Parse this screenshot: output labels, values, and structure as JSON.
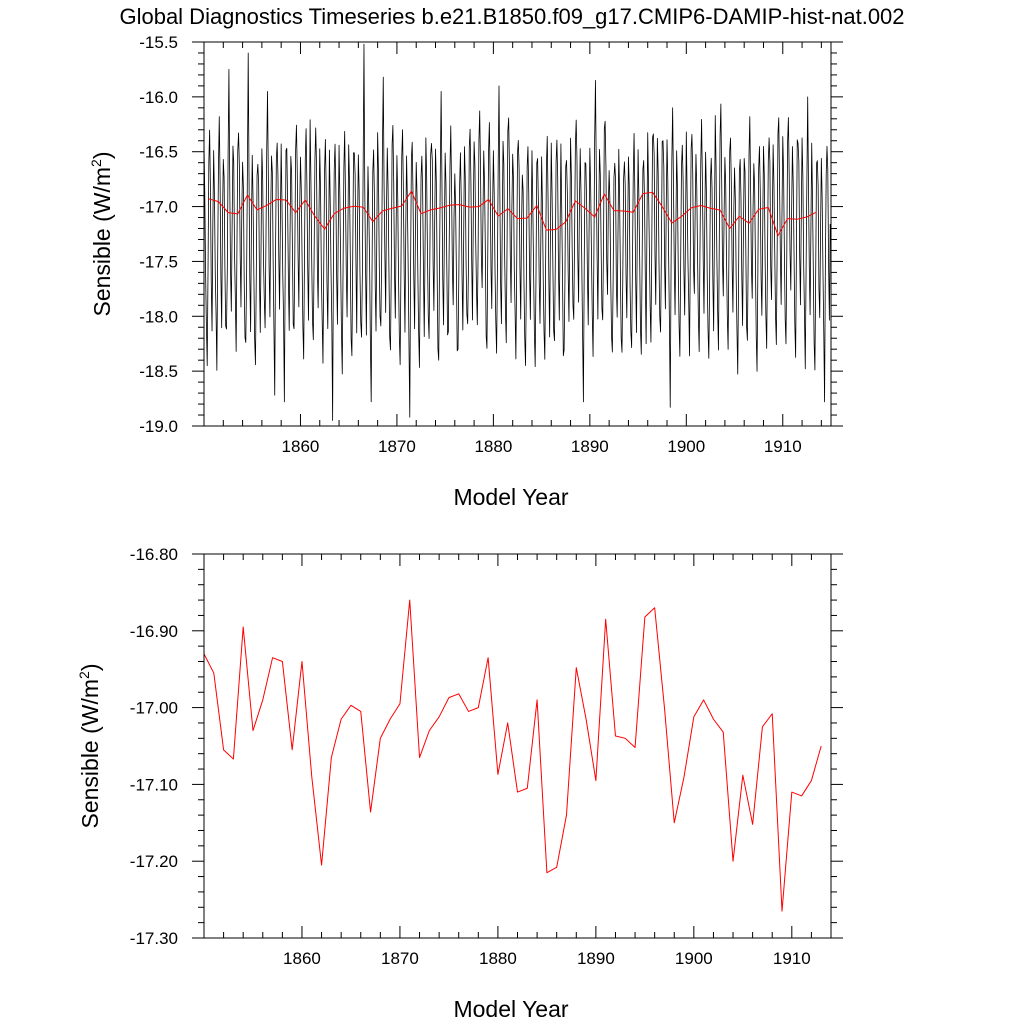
{
  "figure": {
    "title": "Global Diagnostics Timeseries b.e21.B1850.f09_g17.CMIP6-DAMIP-hist-nat.002"
  },
  "colors": {
    "monthly_series": "#000000",
    "annual_series": "#ff0000",
    "axes": "#000000"
  },
  "chart_data": [
    {
      "type": "line",
      "panel": "top",
      "xlabel": "Model Year",
      "ylabel_text": "Sensible (W/m",
      "ylabel_sup": "2",
      "ylabel_close": ")",
      "xlim": [
        1850,
        1915
      ],
      "ylim": [
        -19.0,
        -15.5
      ],
      "xticks": [
        1860,
        1870,
        1880,
        1890,
        1900,
        1910
      ],
      "xtick_labels": [
        "1860",
        "1870",
        "1880",
        "1890",
        "1900",
        "1910"
      ],
      "yticks": [
        -15.5,
        -16.0,
        -16.5,
        -17.0,
        -17.5,
        -18.0,
        -18.5,
        -19.0
      ],
      "ytick_labels": [
        "-15.5",
        "-16.0",
        "-16.5",
        "-17.0",
        "-17.5",
        "-18.0",
        "-18.5",
        "-19.0"
      ],
      "grid": false,
      "series": [
        {
          "role": "monthly",
          "color": "#000000",
          "start_year": 1850,
          "months_per_year": 12,
          "monthly_cycle": [
            -16.45,
            -16.8,
            -17.5,
            -18.05,
            -18.3,
            -17.5,
            -16.55,
            -16.35,
            -16.75,
            -17.55,
            -18.0,
            -17.15
          ],
          "cycle_amplitude": 1.0,
          "peaks": [
            {
              "year": 1851,
              "value": -16.18
            },
            {
              "year": 1852,
              "value": -15.75
            },
            {
              "year": 1854,
              "value": -15.6
            },
            {
              "year": 1856,
              "value": -15.95
            },
            {
              "year": 1866,
              "value": -15.52
            },
            {
              "year": 1868,
              "value": -15.82
            },
            {
              "year": 1874,
              "value": -15.95
            },
            {
              "year": 1880,
              "value": -15.9
            },
            {
              "year": 1890,
              "value": -15.85
            },
            {
              "year": 1898,
              "value": -16.1
            },
            {
              "year": 1912,
              "value": -16.0
            }
          ],
          "troughs": [
            {
              "year": 1857,
              "value": -18.72
            },
            {
              "year": 1858,
              "value": -18.78
            },
            {
              "year": 1863,
              "value": -18.95
            },
            {
              "year": 1867,
              "value": -18.78
            },
            {
              "year": 1871,
              "value": -18.92
            },
            {
              "year": 1889,
              "value": -18.78
            },
            {
              "year": 1898,
              "value": -18.83
            },
            {
              "year": 1914,
              "value": -18.78
            }
          ]
        },
        {
          "role": "annual",
          "color": "#ff0000",
          "x": [
            1850.5,
            1851.5,
            1852.5,
            1853.5,
            1854.5,
            1855.5,
            1856.5,
            1857.5,
            1858.5,
            1859.5,
            1860.5,
            1861.5,
            1862.5,
            1863.5,
            1864.5,
            1865.5,
            1866.5,
            1867.5,
            1868.5,
            1869.5,
            1870.5,
            1871.5,
            1872.5,
            1873.5,
            1874.5,
            1875.5,
            1876.5,
            1877.5,
            1878.5,
            1879.5,
            1880.5,
            1881.5,
            1882.5,
            1883.5,
            1884.5,
            1885.5,
            1886.5,
            1887.5,
            1888.5,
            1889.5,
            1890.5,
            1891.5,
            1892.5,
            1893.5,
            1894.5,
            1895.5,
            1896.5,
            1897.5,
            1898.5,
            1899.5,
            1900.5,
            1901.5,
            1902.5,
            1903.5,
            1904.5,
            1905.5,
            1906.5,
            1907.5,
            1908.5,
            1909.5,
            1910.5,
            1911.5,
            1912.5,
            1913.5
          ],
          "values": [
            -16.93,
            -16.955,
            -17.055,
            -17.067,
            -16.895,
            -17.03,
            -16.99,
            -16.935,
            -16.94,
            -17.055,
            -16.94,
            -17.09,
            -17.205,
            -17.065,
            -17.015,
            -16.997,
            -17.005,
            -17.136,
            -17.04,
            -17.015,
            -16.995,
            -16.86,
            -17.065,
            -17.03,
            -17.012,
            -16.987,
            -16.982,
            -17.005,
            -17.0,
            -16.935,
            -17.087,
            -17.02,
            -17.11,
            -17.105,
            -16.99,
            -17.215,
            -17.208,
            -17.14,
            -16.948,
            -17.015,
            -17.095,
            -16.885,
            -17.037,
            -17.04,
            -17.052,
            -16.882,
            -16.87,
            -17.0,
            -17.15,
            -17.09,
            -17.012,
            -16.99,
            -17.015,
            -17.032,
            -17.2,
            -17.088,
            -17.152,
            -17.025,
            -17.008,
            -17.265,
            -17.11,
            -17.115,
            -17.095,
            -17.05
          ]
        }
      ]
    },
    {
      "type": "line",
      "panel": "bottom",
      "xlabel": "Model Year",
      "ylabel_text": "Sensible (W/m",
      "ylabel_sup": "2",
      "ylabel_close": ")",
      "xlim": [
        1850,
        1914
      ],
      "ylim": [
        -17.3,
        -16.8
      ],
      "xticks": [
        1860,
        1870,
        1880,
        1890,
        1900,
        1910
      ],
      "xtick_labels": [
        "1860",
        "1870",
        "1880",
        "1890",
        "1900",
        "1910"
      ],
      "yticks": [
        -16.8,
        -16.9,
        -17.0,
        -17.1,
        -17.2,
        -17.3
      ],
      "ytick_labels": [
        "-16.80",
        "-16.90",
        "-17.00",
        "-17.10",
        "-17.20",
        "-17.30"
      ],
      "grid": false,
      "series": [
        {
          "role": "annual",
          "color": "#ff0000",
          "x": [
            1850.0,
            1851.0,
            1852.0,
            1853.0,
            1854.0,
            1855.0,
            1856.0,
            1857.0,
            1858.0,
            1859.0,
            1860.0,
            1861.0,
            1862.0,
            1863.0,
            1864.0,
            1865.0,
            1866.0,
            1867.0,
            1868.0,
            1869.0,
            1870.0,
            1871.0,
            1872.0,
            1873.0,
            1874.0,
            1875.0,
            1876.0,
            1877.0,
            1878.0,
            1879.0,
            1880.0,
            1881.0,
            1882.0,
            1883.0,
            1884.0,
            1885.0,
            1886.0,
            1887.0,
            1888.0,
            1889.0,
            1890.0,
            1891.0,
            1892.0,
            1893.0,
            1894.0,
            1895.0,
            1896.0,
            1897.0,
            1898.0,
            1899.0,
            1900.0,
            1901.0,
            1902.0,
            1903.0,
            1904.0,
            1905.0,
            1906.0,
            1907.0,
            1908.0,
            1909.0,
            1910.0,
            1911.0,
            1912.0,
            1913.0
          ],
          "values": [
            -16.93,
            -16.955,
            -17.055,
            -17.067,
            -16.895,
            -17.03,
            -16.99,
            -16.935,
            -16.94,
            -17.055,
            -16.94,
            -17.09,
            -17.205,
            -17.065,
            -17.015,
            -16.997,
            -17.005,
            -17.136,
            -17.04,
            -17.015,
            -16.995,
            -16.86,
            -17.065,
            -17.03,
            -17.012,
            -16.987,
            -16.982,
            -17.005,
            -17.0,
            -16.935,
            -17.087,
            -17.02,
            -17.11,
            -17.105,
            -16.99,
            -17.215,
            -17.208,
            -17.14,
            -16.948,
            -17.015,
            -17.095,
            -16.885,
            -17.037,
            -17.04,
            -17.052,
            -16.882,
            -16.87,
            -17.0,
            -17.15,
            -17.09,
            -17.012,
            -16.99,
            -17.015,
            -17.032,
            -17.2,
            -17.088,
            -17.152,
            -17.025,
            -17.008,
            -17.265,
            -17.11,
            -17.115,
            -17.095,
            -17.05
          ]
        }
      ]
    }
  ]
}
